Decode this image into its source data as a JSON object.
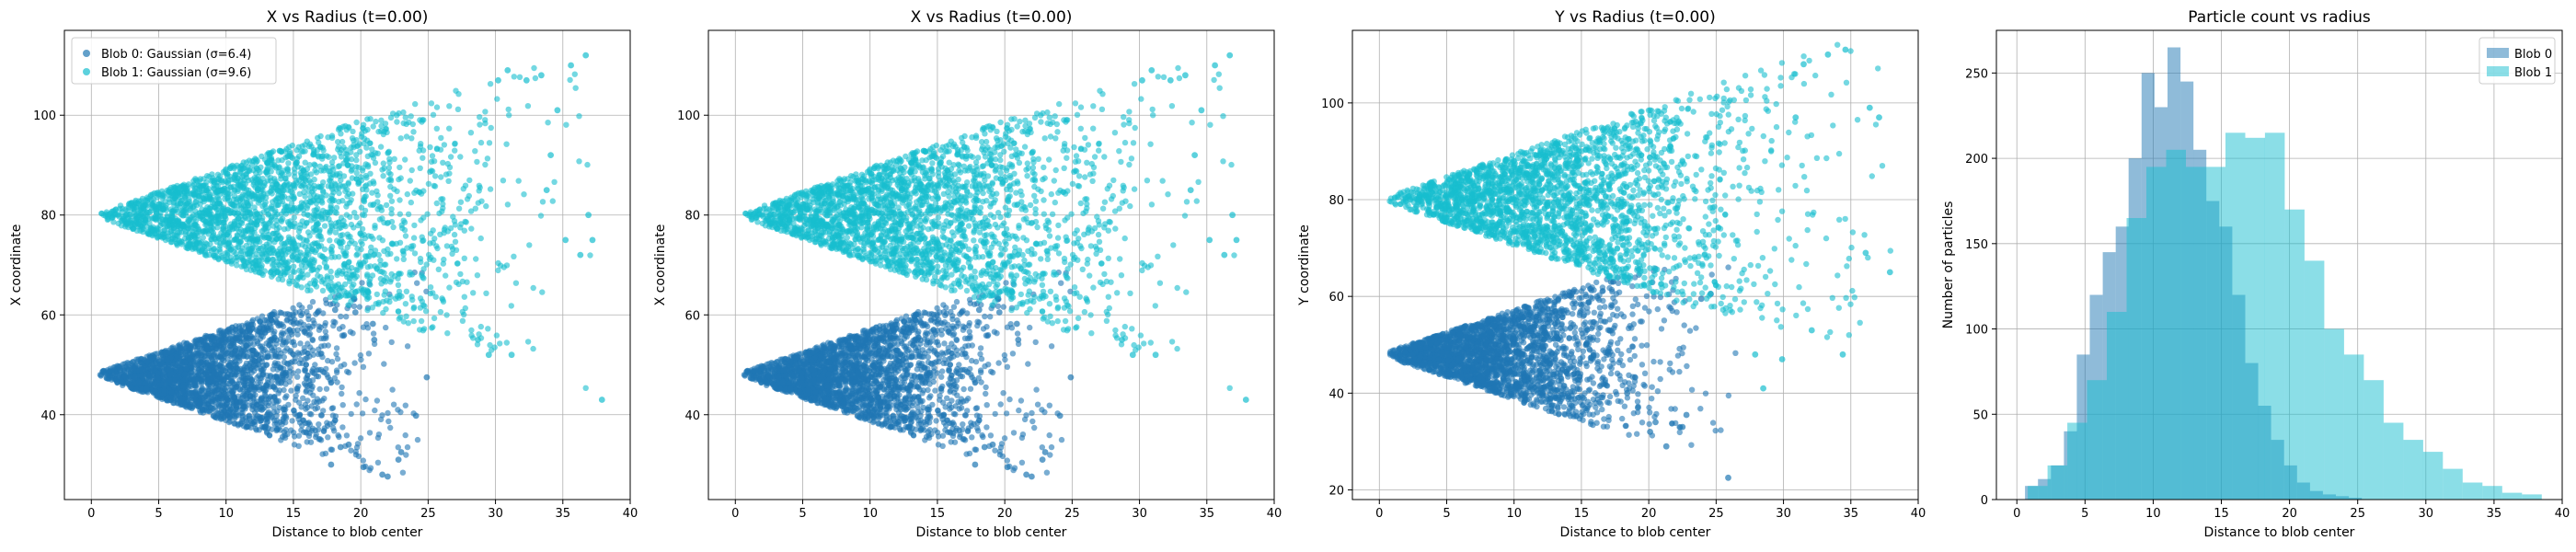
{
  "colors": {
    "blob0": "#1f77b4",
    "blob1": "#17becf",
    "hist_blob0": "#7ba7cd",
    "hist_blob1": "#7fd9e3",
    "grid": "#b0b0b0",
    "axis": "#000000"
  },
  "chart_data": [
    {
      "type": "scatter",
      "title": "X vs Radius (t=0.00)",
      "xlabel": "Distance to blob center",
      "ylabel": "X coordinate",
      "xlim": [
        -2,
        40
      ],
      "ylim": [
        23,
        117
      ],
      "xticks": [
        0,
        5,
        10,
        15,
        20,
        25,
        30,
        35,
        40
      ],
      "yticks": [
        40,
        60,
        80,
        100
      ],
      "grid": true,
      "legend": {
        "position": "top-left",
        "entries": [
          "Blob 0: Gaussian (σ=6.4)",
          "Blob 1: Gaussian (σ=9.6)"
        ]
      },
      "series": [
        {
          "name": "Blob 0: Gaussian (σ=6.4)",
          "color": "#1f77b4",
          "center": 48,
          "spread_slope": 0.98,
          "r_max": 25,
          "x": [
            18.5,
            20.2,
            21.6,
            22.0,
            22.8,
            24.1,
            19.6,
            20.9,
            17.8,
            23.0,
            19.1,
            21.0,
            18.1,
            24.9
          ],
          "y": [
            33.5,
            29.5,
            28.0,
            27.6,
            31.0,
            39.8,
            60.5,
            58.2,
            30.0,
            32.5,
            34.0,
            55.0,
            61.0,
            47.5
          ]
        },
        {
          "name": "Blob 1: Gaussian (σ=9.6)",
          "color": "#17becf",
          "center": 80,
          "spread_slope": 1.0,
          "r_max": 38,
          "x": [
            35.6,
            36.7,
            34.1,
            34.6,
            37.9,
            36.3,
            32.3,
            33.4,
            30.9,
            31.2,
            29.5,
            36.9,
            37.2,
            35.2,
            33.8,
            28.7,
            30.2
          ],
          "y": [
            110.0,
            112.0,
            92.0,
            101.0,
            43.0,
            72.0,
            107.0,
            108.0,
            109.0,
            52.0,
            52.0,
            80.0,
            75.0,
            75.0,
            85.0,
            55.0,
            107.0
          ]
        }
      ]
    },
    {
      "type": "scatter",
      "title": "X vs Radius (t=0.00)",
      "xlabel": "Distance to blob center",
      "ylabel": "X coordinate",
      "xlim": [
        -2,
        40
      ],
      "ylim": [
        23,
        117
      ],
      "xticks": [
        0,
        5,
        10,
        15,
        20,
        25,
        30,
        35,
        40
      ],
      "yticks": [
        40,
        60,
        80,
        100
      ],
      "grid": true,
      "series": [
        {
          "color": "#1f77b4",
          "center": 48,
          "spread_slope": 0.98,
          "r_max": 25,
          "x": [
            18.5,
            20.2,
            21.6,
            22.0,
            22.8,
            24.1,
            19.6,
            20.9,
            17.8,
            23.0,
            19.1,
            21.0,
            18.1,
            24.9
          ],
          "y": [
            33.5,
            29.5,
            28.0,
            27.6,
            31.0,
            39.8,
            60.5,
            58.2,
            30.0,
            32.5,
            34.0,
            55.0,
            61.0,
            47.5
          ]
        },
        {
          "color": "#17becf",
          "center": 80,
          "spread_slope": 1.0,
          "r_max": 38,
          "x": [
            35.6,
            36.7,
            34.1,
            34.6,
            37.9,
            36.3,
            32.3,
            33.4,
            30.9,
            31.2,
            29.5,
            36.9,
            37.2,
            35.2,
            33.8,
            28.7,
            30.2
          ],
          "y": [
            110.0,
            112.0,
            92.0,
            101.0,
            43.0,
            72.0,
            107.0,
            108.0,
            109.0,
            52.0,
            52.0,
            80.0,
            75.0,
            75.0,
            85.0,
            55.0,
            107.0
          ]
        }
      ]
    },
    {
      "type": "scatter",
      "title": "Y vs Radius (t=0.00)",
      "xlabel": "Distance to blob center",
      "ylabel": "Y coordinate",
      "xlim": [
        -2,
        40
      ],
      "ylim": [
        18,
        115
      ],
      "xticks": [
        0,
        5,
        10,
        15,
        20,
        25,
        30,
        35,
        40
      ],
      "yticks": [
        20,
        40,
        60,
        80,
        100
      ],
      "grid": true,
      "series": [
        {
          "color": "#1f77b4",
          "center": 48,
          "spread_slope": 0.98,
          "r_max": 27,
          "x": [
            25.9,
            22.5,
            21.3,
            20.1,
            19.2,
            18.4,
            23.9,
            24.6,
            17.2,
            22.8,
            20.5
          ],
          "y": [
            22.5,
            33.0,
            29.0,
            32.0,
            37.0,
            40.0,
            59.5,
            60.5,
            63.0,
            35.5,
            34.0
          ]
        },
        {
          "color": "#17becf",
          "center": 80,
          "spread_slope": 1.0,
          "r_max": 38,
          "x": [
            34.6,
            34.4,
            36.4,
            37.1,
            36.1,
            37.9,
            33.3,
            31.5,
            32.1,
            29.9,
            27.9,
            30.9,
            28.5
          ],
          "y": [
            111.0,
            48.0,
            99.0,
            97.0,
            69.0,
            65.0,
            110.0,
            108.0,
            53.0,
            47.0,
            48.0,
            97.0,
            41.0
          ]
        }
      ]
    },
    {
      "type": "bar",
      "title": "Particle count vs radius",
      "xlabel": "Distance to blob center",
      "ylabel": "Number of particles",
      "xlim": [
        -1.5,
        40
      ],
      "ylim": [
        0,
        275
      ],
      "xticks": [
        0,
        5,
        10,
        15,
        20,
        25,
        30,
        35,
        40
      ],
      "yticks": [
        0,
        50,
        100,
        150,
        200,
        250
      ],
      "grid": true,
      "legend": {
        "position": "top-right",
        "entries": [
          "Blob 0",
          "Blob 1"
        ]
      },
      "series": [
        {
          "name": "Blob 0",
          "color": "#1f77b4",
          "bin_start": 0.6,
          "bin_width": 0.95,
          "values": [
            8,
            12,
            20,
            40,
            85,
            120,
            145,
            160,
            200,
            250,
            230,
            265,
            245,
            205,
            175,
            160,
            120,
            80,
            55,
            35,
            20,
            10,
            5,
            3,
            2,
            1
          ]
        },
        {
          "name": "Blob 1",
          "color": "#17becf",
          "bin_start": 0.8,
          "bin_width": 1.45,
          "values": [
            8,
            20,
            45,
            70,
            110,
            165,
            195,
            205,
            195,
            195,
            215,
            212,
            215,
            170,
            140,
            100,
            85,
            70,
            45,
            35,
            28,
            18,
            10,
            8,
            4,
            3
          ]
        }
      ]
    }
  ]
}
